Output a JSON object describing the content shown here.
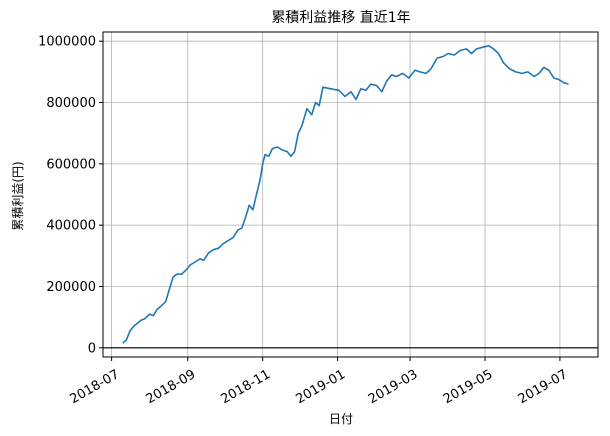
{
  "chart_data": {
    "type": "line",
    "title": "累積利益推移 直近1年",
    "xlabel": "日付",
    "ylabel": "累積利益(円)",
    "x_tick_labels": [
      "2018-07",
      "2018-09",
      "2018-11",
      "2019-01",
      "2019-03",
      "2019-05",
      "2019-07"
    ],
    "y_tick_labels": [
      "0",
      "200000",
      "400000",
      "600000",
      "800000",
      "1000000"
    ],
    "xlim": [
      "2018-06-24",
      "2019-08-01"
    ],
    "ylim": [
      -30000,
      1030000
    ],
    "grid": true,
    "zero_line": true,
    "series": [
      {
        "color": "#1f77b4",
        "points": [
          [
            "2018-07-10",
            15000
          ],
          [
            "2018-07-13",
            25000
          ],
          [
            "2018-07-16",
            55000
          ],
          [
            "2018-07-19",
            70000
          ],
          [
            "2018-07-22",
            80000
          ],
          [
            "2018-07-25",
            90000
          ],
          [
            "2018-07-28",
            95000
          ],
          [
            "2018-08-01",
            110000
          ],
          [
            "2018-08-04",
            105000
          ],
          [
            "2018-08-07",
            125000
          ],
          [
            "2018-08-10",
            135000
          ],
          [
            "2018-08-14",
            150000
          ],
          [
            "2018-08-17",
            190000
          ],
          [
            "2018-08-20",
            230000
          ],
          [
            "2018-08-23",
            240000
          ],
          [
            "2018-08-27",
            240000
          ],
          [
            "2018-08-31",
            255000
          ],
          [
            "2018-09-03",
            270000
          ],
          [
            "2018-09-07",
            280000
          ],
          [
            "2018-09-11",
            290000
          ],
          [
            "2018-09-14",
            285000
          ],
          [
            "2018-09-18",
            310000
          ],
          [
            "2018-09-22",
            320000
          ],
          [
            "2018-09-26",
            325000
          ],
          [
            "2018-09-30",
            340000
          ],
          [
            "2018-10-04",
            350000
          ],
          [
            "2018-10-08",
            360000
          ],
          [
            "2018-10-12",
            385000
          ],
          [
            "2018-10-15",
            390000
          ],
          [
            "2018-10-18",
            425000
          ],
          [
            "2018-10-21",
            465000
          ],
          [
            "2018-10-24",
            450000
          ],
          [
            "2018-10-27",
            500000
          ],
          [
            "2018-10-30",
            550000
          ],
          [
            "2018-11-01",
            600000
          ],
          [
            "2018-11-03",
            630000
          ],
          [
            "2018-11-06",
            625000
          ],
          [
            "2018-11-09",
            650000
          ],
          [
            "2018-11-13",
            655000
          ],
          [
            "2018-11-17",
            645000
          ],
          [
            "2018-11-21",
            640000
          ],
          [
            "2018-11-24",
            625000
          ],
          [
            "2018-11-27",
            640000
          ],
          [
            "2018-11-30",
            700000
          ],
          [
            "2018-12-03",
            725000
          ],
          [
            "2018-12-07",
            780000
          ],
          [
            "2018-12-11",
            760000
          ],
          [
            "2018-12-14",
            800000
          ],
          [
            "2018-12-17",
            790000
          ],
          [
            "2018-12-20",
            850000
          ],
          [
            "2018-12-26",
            845000
          ],
          [
            "2019-01-02",
            840000
          ],
          [
            "2019-01-07",
            820000
          ],
          [
            "2019-01-12",
            835000
          ],
          [
            "2019-01-16",
            810000
          ],
          [
            "2019-01-20",
            845000
          ],
          [
            "2019-01-24",
            840000
          ],
          [
            "2019-01-28",
            860000
          ],
          [
            "2019-02-02",
            855000
          ],
          [
            "2019-02-06",
            835000
          ],
          [
            "2019-02-10",
            870000
          ],
          [
            "2019-02-14",
            890000
          ],
          [
            "2019-02-18",
            885000
          ],
          [
            "2019-02-23",
            895000
          ],
          [
            "2019-02-28",
            880000
          ],
          [
            "2019-03-05",
            905000
          ],
          [
            "2019-03-09",
            900000
          ],
          [
            "2019-03-14",
            895000
          ],
          [
            "2019-03-18",
            910000
          ],
          [
            "2019-03-23",
            945000
          ],
          [
            "2019-03-28",
            950000
          ],
          [
            "2019-04-01",
            960000
          ],
          [
            "2019-04-06",
            955000
          ],
          [
            "2019-04-11",
            970000
          ],
          [
            "2019-04-16",
            975000
          ],
          [
            "2019-04-20",
            960000
          ],
          [
            "2019-04-24",
            975000
          ],
          [
            "2019-04-29",
            980000
          ],
          [
            "2019-05-04",
            985000
          ],
          [
            "2019-05-08",
            975000
          ],
          [
            "2019-05-12",
            960000
          ],
          [
            "2019-05-16",
            930000
          ],
          [
            "2019-05-21",
            910000
          ],
          [
            "2019-05-26",
            900000
          ],
          [
            "2019-05-31",
            895000
          ],
          [
            "2019-06-05",
            900000
          ],
          [
            "2019-06-10",
            885000
          ],
          [
            "2019-06-14",
            895000
          ],
          [
            "2019-06-18",
            915000
          ],
          [
            "2019-06-22",
            905000
          ],
          [
            "2019-06-26",
            880000
          ],
          [
            "2019-06-30",
            875000
          ],
          [
            "2019-07-04",
            865000
          ],
          [
            "2019-07-08",
            860000
          ]
        ]
      }
    ]
  }
}
